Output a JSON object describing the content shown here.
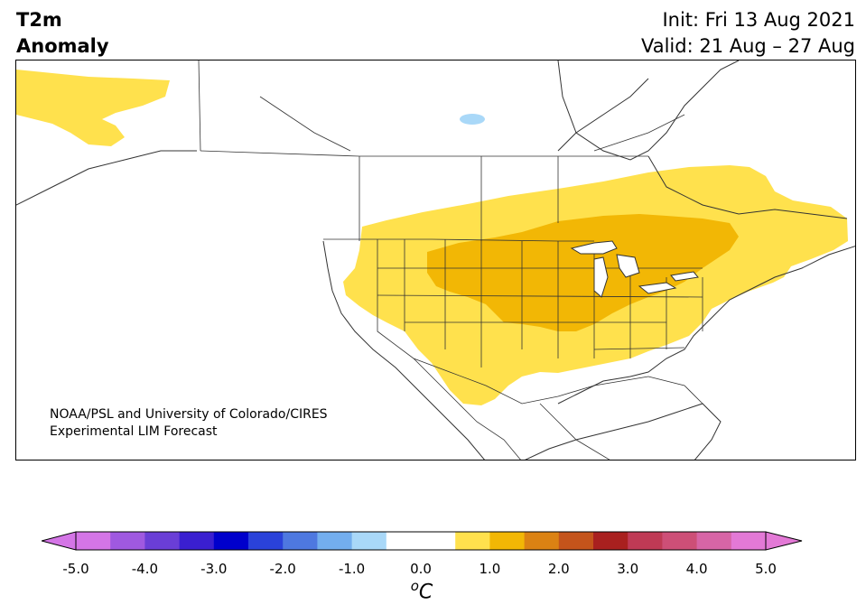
{
  "header": {
    "variable_line1": "T2m",
    "variable_line2": "Anomaly",
    "init": "Init: Fri 13 Aug 2021",
    "valid": "Valid: 21 Aug – 27 Aug"
  },
  "credit": {
    "line1": "NOAA/PSL and University of Colorado/CIRES",
    "line2": "Experimental LIM Forecast"
  },
  "colorbar": {
    "ticks": [
      "-5.0",
      "-4.0",
      "-3.0",
      "-2.0",
      "-1.0",
      "0.0",
      "1.0",
      "2.0",
      "3.0",
      "4.0",
      "5.0"
    ],
    "unit_sup": "o",
    "unit_main": "C",
    "colors": [
      "#d475e6",
      "#9f59e0",
      "#6a3ed6",
      "#3a1fd0",
      "#0000cc",
      "#2a42da",
      "#4e78e0",
      "#73aeee",
      "#a9d8f8",
      "#ffffff",
      "#ffffff",
      "#ffe14d",
      "#f2b705",
      "#db8213",
      "#c4541b",
      "#a9201f",
      "#bf3a55",
      "#cd4f77",
      "#d765a6",
      "#e379d6"
    ],
    "under_color": "#d475e6",
    "over_color": "#e379d6"
  },
  "map": {
    "colors": {
      "anomaly_0_5_to_1": "#ffe14d",
      "anomaly_1_to_1_5": "#f2b705",
      "anomaly_neg_0_5_to_neg_1": "#a9d8f8",
      "land": "#ffffff",
      "boundary": "#333333"
    }
  }
}
